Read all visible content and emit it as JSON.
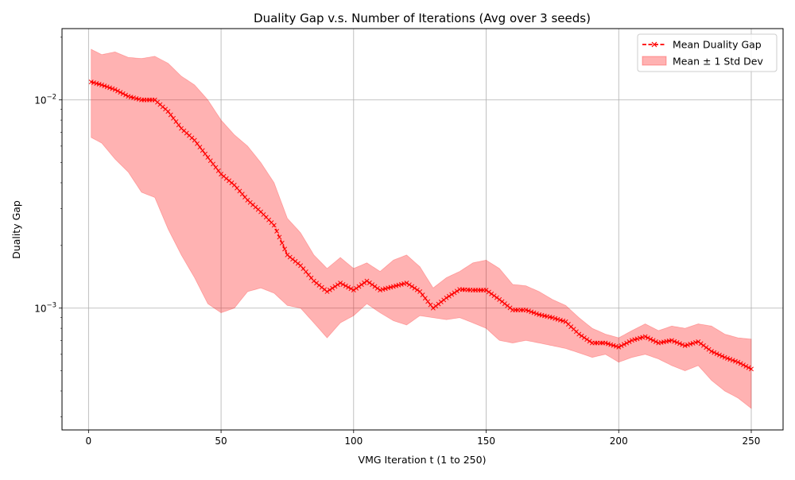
{
  "chart_data": {
    "type": "line",
    "title": "Duality Gap v.s. Number of Iterations (Avg over 3 seeds)",
    "xlabel": "VMG Iteration t (1 to 250)",
    "ylabel": "Duality Gap",
    "xlim": [
      -10,
      262
    ],
    "ylim": [
      0.00026,
      0.022
    ],
    "yscale": "log",
    "grid": true,
    "legend_position": "top-right",
    "x_ticks": [
      0,
      50,
      100,
      150,
      200,
      250
    ],
    "x_tick_labels": [
      "0",
      "50",
      "100",
      "150",
      "200",
      "250"
    ],
    "y_ticks": [
      0.001,
      0.01
    ],
    "y_tick_labels": [
      {
        "base": "10",
        "exp": "−3"
      },
      {
        "base": "10",
        "exp": "−2"
      }
    ],
    "series": [
      {
        "name": "Mean Duality Gap",
        "color": "#ff0000",
        "line_style": "dashed",
        "marker": "x",
        "points": [
          [
            1,
            0.0122
          ],
          [
            5,
            0.0118
          ],
          [
            10,
            0.0112
          ],
          [
            15,
            0.0104
          ],
          [
            20,
            0.01
          ],
          [
            25,
            0.01
          ],
          [
            30,
            0.0088
          ],
          [
            35,
            0.0073
          ],
          [
            40,
            0.0064
          ],
          [
            45,
            0.0053
          ],
          [
            50,
            0.0044
          ],
          [
            55,
            0.0039
          ],
          [
            60,
            0.0033
          ],
          [
            65,
            0.0029
          ],
          [
            70,
            0.0025
          ],
          [
            75,
            0.0018
          ],
          [
            80,
            0.0016
          ],
          [
            85,
            0.00135
          ],
          [
            90,
            0.0012
          ],
          [
            95,
            0.00132
          ],
          [
            100,
            0.00122
          ],
          [
            105,
            0.00135
          ],
          [
            110,
            0.00122
          ],
          [
            115,
            0.00127
          ],
          [
            120,
            0.00132
          ],
          [
            125,
            0.0012
          ],
          [
            130,
            0.001
          ],
          [
            135,
            0.00112
          ],
          [
            140,
            0.00123
          ],
          [
            145,
            0.00122
          ],
          [
            150,
            0.00122
          ],
          [
            155,
            0.0011
          ],
          [
            160,
            0.00098
          ],
          [
            165,
            0.00098
          ],
          [
            170,
            0.00093
          ],
          [
            175,
            0.0009
          ],
          [
            180,
            0.00086
          ],
          [
            185,
            0.00075
          ],
          [
            190,
            0.00068
          ],
          [
            195,
            0.00068
          ],
          [
            200,
            0.00065
          ],
          [
            205,
            0.0007
          ],
          [
            210,
            0.00073
          ],
          [
            215,
            0.00068
          ],
          [
            220,
            0.0007
          ],
          [
            225,
            0.00066
          ],
          [
            230,
            0.00069
          ],
          [
            235,
            0.00062
          ],
          [
            240,
            0.00058
          ],
          [
            245,
            0.00055
          ],
          [
            250,
            0.00051
          ]
        ]
      },
      {
        "name": "Mean ± 1 Std Dev",
        "color": "#ff0000",
        "fill_opacity": 0.3,
        "type": "area",
        "upper": [
          [
            1,
            0.0175
          ],
          [
            5,
            0.0165
          ],
          [
            10,
            0.017
          ],
          [
            15,
            0.016
          ],
          [
            20,
            0.0158
          ],
          [
            25,
            0.0162
          ],
          [
            30,
            0.015
          ],
          [
            35,
            0.013
          ],
          [
            40,
            0.0118
          ],
          [
            45,
            0.01
          ],
          [
            50,
            0.008
          ],
          [
            55,
            0.0068
          ],
          [
            60,
            0.006
          ],
          [
            65,
            0.005
          ],
          [
            70,
            0.004
          ],
          [
            75,
            0.0027
          ],
          [
            80,
            0.0023
          ],
          [
            85,
            0.0018
          ],
          [
            90,
            0.00155
          ],
          [
            95,
            0.00175
          ],
          [
            100,
            0.00155
          ],
          [
            105,
            0.00165
          ],
          [
            110,
            0.0015
          ],
          [
            115,
            0.0017
          ],
          [
            120,
            0.0018
          ],
          [
            125,
            0.00158
          ],
          [
            130,
            0.00125
          ],
          [
            135,
            0.0014
          ],
          [
            140,
            0.0015
          ],
          [
            145,
            0.00165
          ],
          [
            150,
            0.0017
          ],
          [
            155,
            0.00155
          ],
          [
            160,
            0.0013
          ],
          [
            165,
            0.00128
          ],
          [
            170,
            0.0012
          ],
          [
            175,
            0.0011
          ],
          [
            180,
            0.00103
          ],
          [
            185,
            0.0009
          ],
          [
            190,
            0.0008
          ],
          [
            195,
            0.00075
          ],
          [
            200,
            0.00072
          ],
          [
            205,
            0.00078
          ],
          [
            210,
            0.00084
          ],
          [
            215,
            0.00078
          ],
          [
            220,
            0.00082
          ],
          [
            225,
            0.0008
          ],
          [
            230,
            0.00084
          ],
          [
            235,
            0.00082
          ],
          [
            240,
            0.00075
          ],
          [
            245,
            0.00072
          ],
          [
            250,
            0.00071
          ]
        ],
        "lower": [
          [
            1,
            0.0066
          ],
          [
            5,
            0.0062
          ],
          [
            10,
            0.0052
          ],
          [
            15,
            0.0045
          ],
          [
            20,
            0.0036
          ],
          [
            25,
            0.0034
          ],
          [
            30,
            0.0024
          ],
          [
            35,
            0.0018
          ],
          [
            40,
            0.0014
          ],
          [
            45,
            0.00105
          ],
          [
            50,
            0.00095
          ],
          [
            55,
            0.001
          ],
          [
            60,
            0.0012
          ],
          [
            65,
            0.00125
          ],
          [
            70,
            0.00118
          ],
          [
            75,
            0.00103
          ],
          [
            80,
            0.001
          ],
          [
            85,
            0.00085
          ],
          [
            90,
            0.00072
          ],
          [
            95,
            0.00085
          ],
          [
            100,
            0.00092
          ],
          [
            105,
            0.00105
          ],
          [
            110,
            0.00095
          ],
          [
            115,
            0.00087
          ],
          [
            120,
            0.00083
          ],
          [
            125,
            0.00092
          ],
          [
            130,
            0.0009
          ],
          [
            135,
            0.00088
          ],
          [
            140,
            0.0009
          ],
          [
            145,
            0.00085
          ],
          [
            150,
            0.0008
          ],
          [
            155,
            0.0007
          ],
          [
            160,
            0.00068
          ],
          [
            165,
            0.0007
          ],
          [
            170,
            0.00068
          ],
          [
            175,
            0.00066
          ],
          [
            180,
            0.00064
          ],
          [
            185,
            0.00061
          ],
          [
            190,
            0.00058
          ],
          [
            195,
            0.0006
          ],
          [
            200,
            0.00055
          ],
          [
            205,
            0.00058
          ],
          [
            210,
            0.0006
          ],
          [
            215,
            0.00057
          ],
          [
            220,
            0.00053
          ],
          [
            225,
            0.0005
          ],
          [
            230,
            0.00053
          ],
          [
            235,
            0.00045
          ],
          [
            240,
            0.0004
          ],
          [
            245,
            0.00037
          ],
          [
            250,
            0.00033
          ]
        ]
      }
    ]
  }
}
